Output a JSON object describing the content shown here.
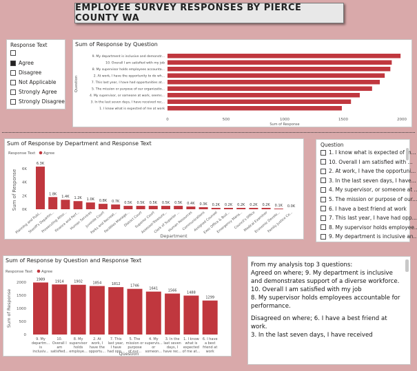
{
  "title": "EMPLOYEE SURVEY RESPONSES BY PIERCE COUNTY WA",
  "response_slicer": {
    "title": "Response Text",
    "items": [
      {
        "label": "",
        "checked": false
      },
      {
        "label": "Agree",
        "checked": true
      },
      {
        "label": "Disagree",
        "checked": false
      },
      {
        "label": "Not Applicable",
        "checked": false
      },
      {
        "label": "Strongly Agree",
        "checked": false
      },
      {
        "label": "Strongly Disagree",
        "checked": false
      }
    ]
  },
  "question_slicer": {
    "title": "Question",
    "items": [
      "1. I know what is expected of m...",
      "10. Overall I am satisfied with ...",
      "2. At work, I have the opportuni...",
      "3. In the last seven days, I have...",
      "4. My supervisor, or someone at ...",
      "5. The mission or purpose of our...",
      "6. I have a best friend at work",
      "7. This last year, I have had opp...",
      "8. My supervisor holds employee...",
      "9. My department is inclusive an..."
    ]
  },
  "textbox": {
    "p1": "From my analysis top 3 questions:",
    "p2": " Agreed on where; 9. My department is inclusive and demonstrates support of a diverse workforce.",
    "p3": "10. Overall I am satisfied with my job",
    "p4": "8. My supervisor holds employees accountable for performance.",
    "p5": "Disagreed on where; 6. I have a best friend at work.",
    "p6": "3. In the last seven days, I have received"
  },
  "chart_data": [
    {
      "type": "bar",
      "orientation": "horizontal",
      "title": "Sum of Response by Question",
      "xlabel": "Sum of Response",
      "ylabel": "Question",
      "xlim": [
        0,
        2000
      ],
      "xticks": [
        "0",
        "500",
        "1000",
        "1500",
        "2000"
      ],
      "color": "#c0373e",
      "categories": [
        "9. My department is inclusive and demonstr...",
        "10. Overall I am satisfied with my job",
        "8. My supervisor holds employees accounta...",
        "2. At work, I have the opportunity to do wh...",
        "7. This last year, I have had opportunities at...",
        "5. The mission or purpose of our organizatio...",
        "4. My supervisor, or someone at work, seems...",
        "3. In the last seven days, I have received rec...",
        "1. I know what is expected of me at work"
      ],
      "values": [
        1989,
        1914,
        1902,
        1854,
        1812,
        1746,
        1641,
        1566,
        1488
      ]
    },
    {
      "type": "bar",
      "title": "Sum of Response by Department and Response Text",
      "legend_title": "Response Text",
      "legend": [
        "Agree"
      ],
      "xlabel": "Department",
      "ylabel": "Sum of Response",
      "ylim": [
        0,
        6000
      ],
      "yticks": [
        "0K",
        "2K",
        "4K",
        "6K"
      ],
      "color": "#c0373e",
      "categories": [
        "Planning and Publ...",
        "Sheriff's Departm...",
        "Prosecuting Attor...",
        "Finance and Perf...",
        "Human Services",
        "Juvenile Court",
        "Parks and Recreat...",
        "Facilities Manage...",
        "District Court",
        "Superior Court",
        "Assessor-Treasure...",
        "Clerk of Superior ...",
        "Human Resources",
        "Communications",
        "Assigned Counsel",
        "Exec Office & Bud...",
        "Emergency Mana...",
        "Council's Office",
        "Medical Examiner",
        "Economic Develo...",
        "Family Justice Ce..."
      ],
      "values": [
        6300,
        1800,
        1400,
        1200,
        1000,
        800,
        700,
        500,
        500,
        500,
        500,
        500,
        400,
        300,
        200,
        200,
        200,
        200,
        200,
        100,
        0
      ],
      "labels": [
        "6.3K",
        "1.8K",
        "1.4K",
        "1.2K",
        "1.0K",
        "0.8K",
        "0.7K",
        "0.5K",
        "0.5K",
        "0.5K",
        "0.5K",
        "0.5K",
        "0.4K",
        "0.3K",
        "0.2K",
        "0.2K",
        "0.2K",
        "0.2K",
        "0.2K",
        "0.1K",
        "0.0K"
      ]
    },
    {
      "type": "bar",
      "title": "Sum of Response by Question and Response Text",
      "legend_title": "Response Text",
      "legend": [
        "Agree"
      ],
      "xlabel": "Question",
      "ylabel": "Sum of Response",
      "ylim": [
        0,
        2000
      ],
      "yticks": [
        "0",
        "500",
        "1000",
        "1500",
        "2000"
      ],
      "color": "#c0373e",
      "categories": [
        [
          "9. My",
          "departm...",
          "is",
          "inclusiv..."
        ],
        [
          "10.",
          "Overall I",
          "am",
          "satisfied..."
        ],
        [
          "8. My",
          "supervisor",
          "holds",
          "employe..."
        ],
        [
          "2. At",
          "work, I",
          "have the",
          "opportu..."
        ],
        [
          "7. This",
          "last year,",
          "I have",
          "had opp..."
        ],
        [
          "5. The",
          "mission or",
          "purpose",
          "of our..."
        ],
        [
          "4. My",
          "supervis...",
          "or",
          "someon..."
        ],
        [
          "3. In the",
          "last seven",
          "days, I",
          "have rec..."
        ],
        [
          "1. I know",
          "what is",
          "expected",
          "of me at..."
        ],
        [
          "6. I have",
          "a best",
          "friend at",
          "work"
        ]
      ],
      "values": [
        1989,
        1914,
        1902,
        1854,
        1812,
        1746,
        1641,
        1566,
        1488,
        1299
      ]
    }
  ]
}
